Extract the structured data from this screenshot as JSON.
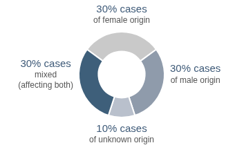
{
  "chart_data": {
    "type": "doughnut",
    "categories": [
      "of female origin",
      "of male origin",
      "of unknown origin",
      "mixed (affecting both)"
    ],
    "values": [
      30,
      30,
      10,
      30
    ],
    "value_labels": [
      "30% cases",
      "30% cases",
      "10% cases",
      "30% cases"
    ],
    "colors": [
      "#c9c9c9",
      "#8f9bab",
      "#b9c0cc",
      "#3e5f7a"
    ],
    "data_labels": true
  }
}
